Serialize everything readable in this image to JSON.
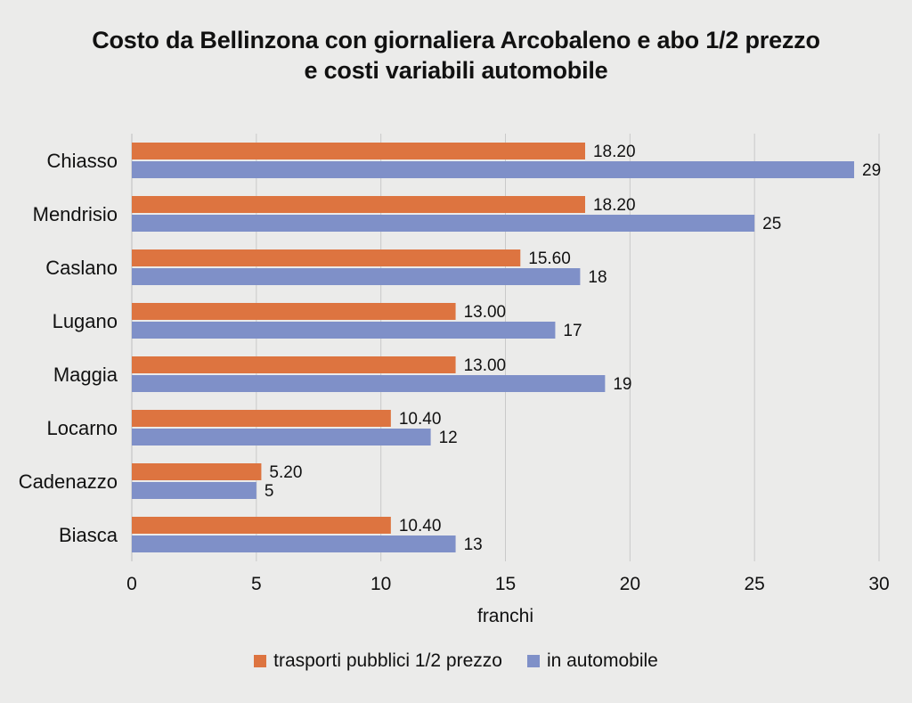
{
  "chart_data": {
    "type": "bar",
    "orientation": "horizontal",
    "title_line1": "Costo da Bellinzona con giornaliera Arcobaleno e abo 1/2 prezzo",
    "title_line2": "e costi variabili automobile",
    "xlabel": "franchi",
    "ylabel": "",
    "xlim": [
      0,
      30
    ],
    "xticks": [
      "0",
      "5",
      "10",
      "15",
      "20",
      "25",
      "30"
    ],
    "grid": "vertical",
    "legend_position": "bottom",
    "categories": [
      "Chiasso",
      "Mendrisio",
      "Caslano",
      "Lugano",
      "Maggia",
      "Locarno",
      "Cadenazzo",
      "Biasca"
    ],
    "series": [
      {
        "name": "trasporti pubblici 1/2 prezzo",
        "color": "#dd7440",
        "values": [
          18.2,
          18.2,
          15.6,
          13.0,
          13.0,
          10.4,
          5.2,
          10.4
        ],
        "labels": [
          "18.20",
          "18.20",
          "15.60",
          "13.00",
          "13.00",
          "10.40",
          "5.20",
          "10.40"
        ]
      },
      {
        "name": "in automobile",
        "color": "#7f90c8",
        "values": [
          29,
          25,
          18,
          17,
          19,
          12,
          5,
          13
        ],
        "labels": [
          "29",
          "25",
          "18",
          "17",
          "19",
          "12",
          "5",
          "13"
        ]
      }
    ]
  }
}
